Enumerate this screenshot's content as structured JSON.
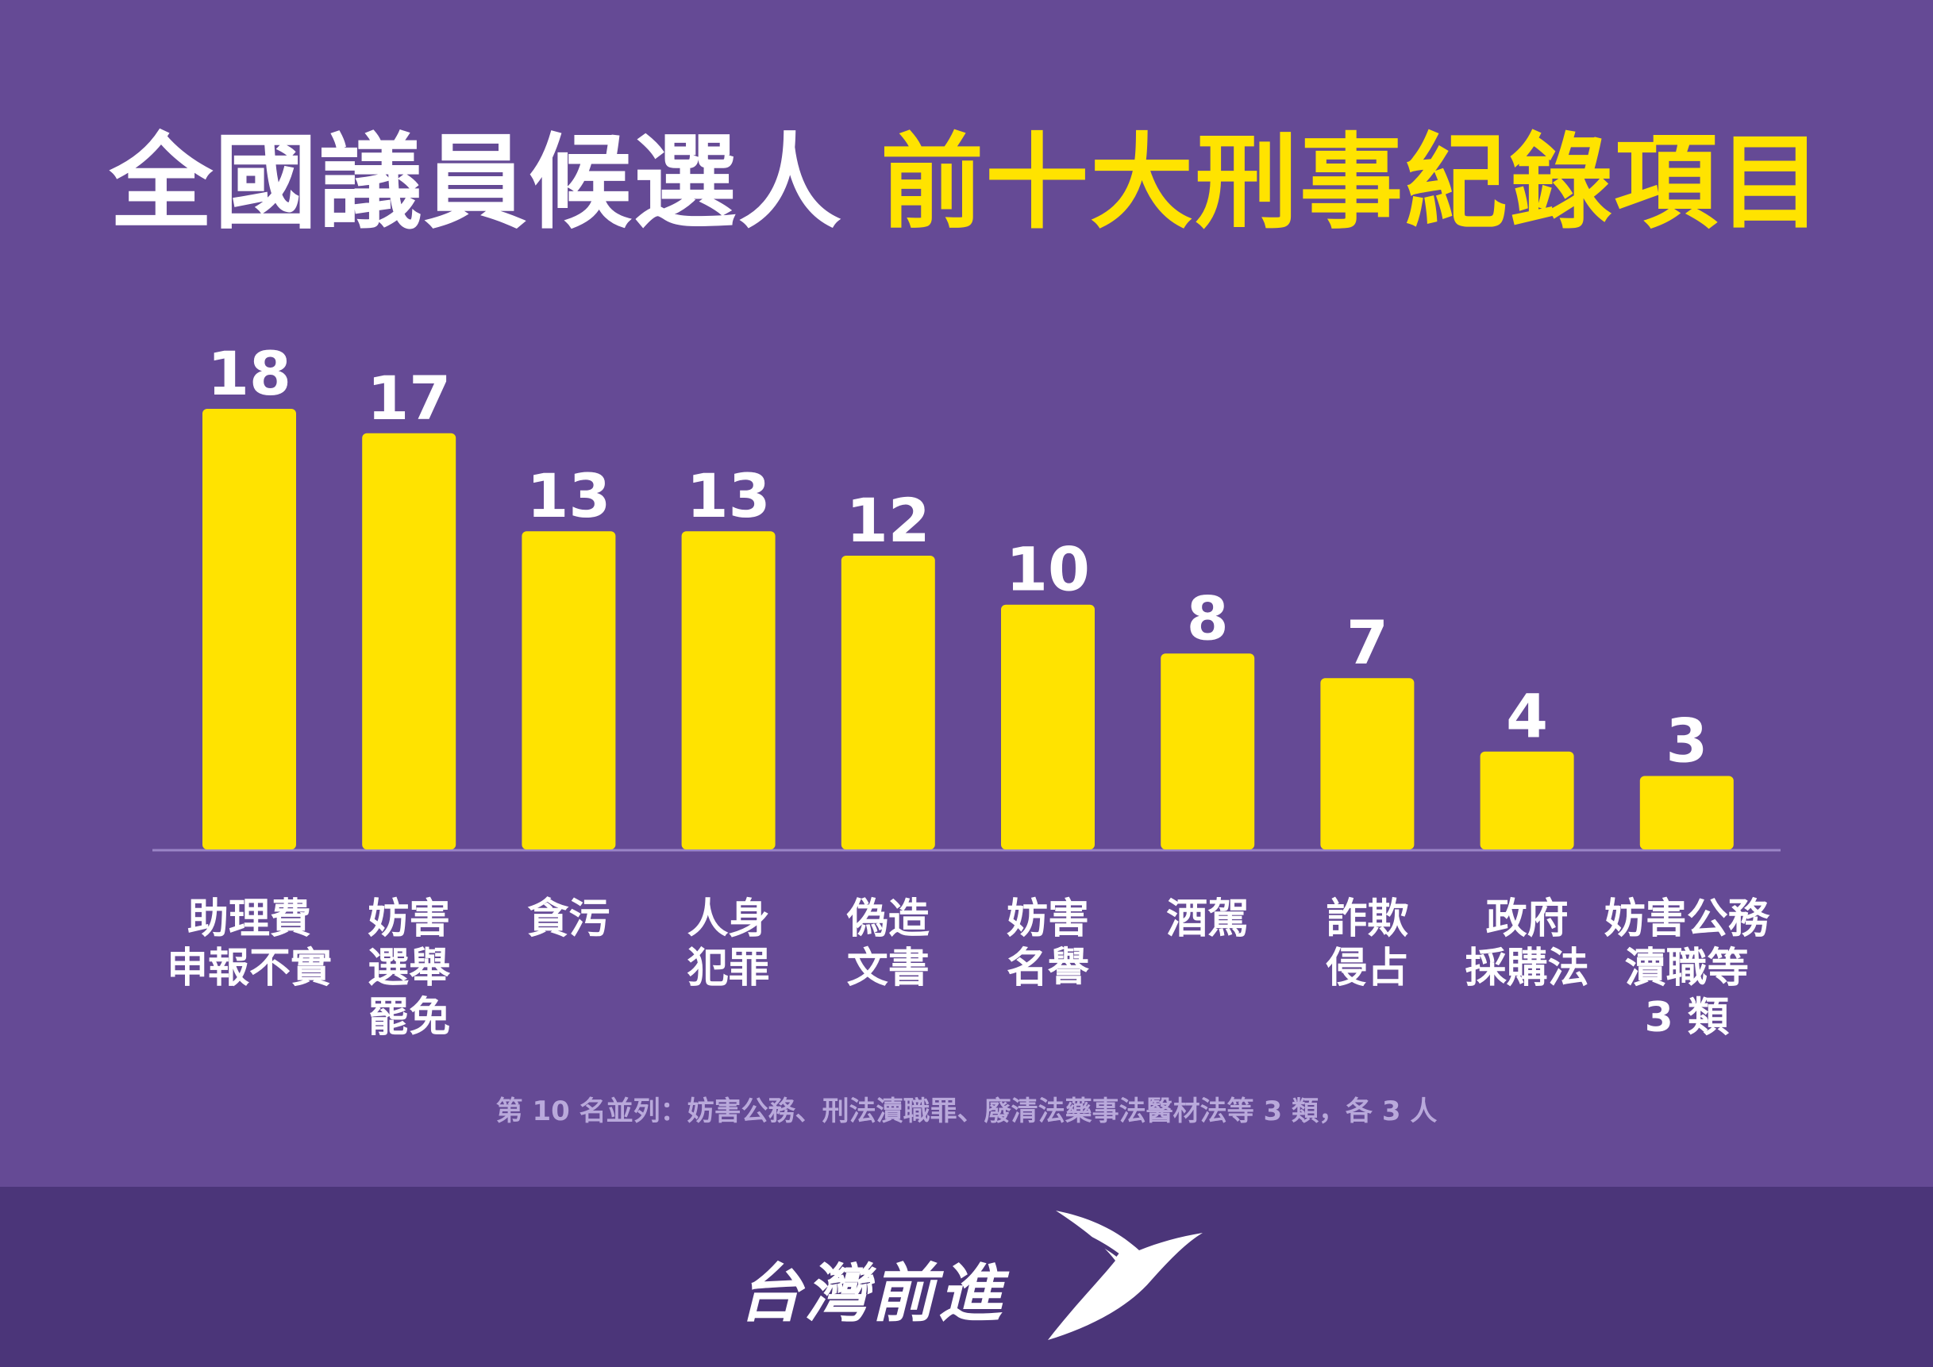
{
  "title": {
    "part1": "全國議員候選人",
    "part2": "前十大刑事紀錄項目"
  },
  "colors": {
    "background": "#654a95",
    "bar": "#ffe300",
    "title_accent": "#ffe300",
    "footer": "#4b3579"
  },
  "chart_data": {
    "type": "bar",
    "title": "全國議員候選人 前十大刑事紀錄項目",
    "categories": [
      [
        "助理費",
        "申報不實"
      ],
      [
        "妨害",
        "選舉",
        "罷免"
      ],
      [
        "貪污"
      ],
      [
        "人身",
        "犯罪"
      ],
      [
        "偽造",
        "文書"
      ],
      [
        "妨害",
        "名譽"
      ],
      [
        "酒駕"
      ],
      [
        "詐欺",
        "侵占"
      ],
      [
        "政府",
        "採購法"
      ],
      [
        "妨害公務",
        "瀆職等",
        "3 類"
      ]
    ],
    "values": [
      18,
      17,
      13,
      13,
      12,
      10,
      8,
      7,
      4,
      3
    ],
    "ylim": [
      0,
      18
    ],
    "grid": false,
    "legend": "none"
  },
  "note": "第 10 名並列：妨害公務、刑法瀆職罪、廢清法藥事法醫材法等 3 類，各 3 人",
  "footer": {
    "brand": "台灣前進",
    "logo_icon": "swallow-logo-icon"
  }
}
